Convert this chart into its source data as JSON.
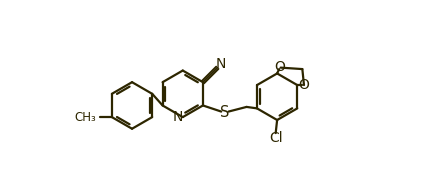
{
  "bg_color": "#ffffff",
  "line_color": "#2d2600",
  "line_width": 1.6,
  "font_size": 9,
  "fig_width": 4.47,
  "fig_height": 1.76,
  "dpi": 100,
  "xlim": [
    0,
    11
  ],
  "ylim": [
    -0.5,
    5.5
  ]
}
